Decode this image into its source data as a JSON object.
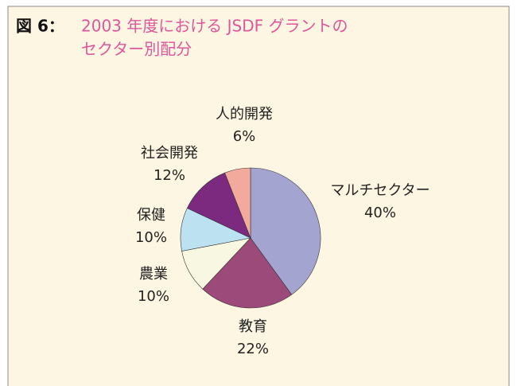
{
  "chart_data": {
    "type": "pie",
    "figure_label": "図 6：",
    "title_lines": [
      "2003 年度における JSDF グラントの",
      "セクター別配分"
    ],
    "categories": [
      "マルチセクター",
      "教育",
      "農業",
      "保健",
      "社会開発",
      "人的開発"
    ],
    "values": [
      40,
      22,
      10,
      10,
      12,
      6
    ],
    "value_labels": [
      "40%",
      "22%",
      "10%",
      "10%",
      "12%",
      "6%"
    ],
    "colors": [
      "#a4a4d0",
      "#9c4a7a",
      "#f8f8e2",
      "#bce2f2",
      "#7c2a80",
      "#f2aa9c"
    ]
  }
}
